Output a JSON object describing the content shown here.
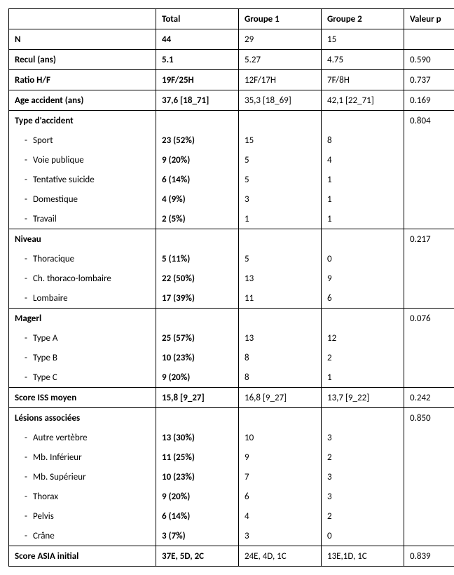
{
  "headers": {
    "c1": "Total",
    "c2": "Groupe 1",
    "c3": "Groupe 2",
    "c4": "Valeur p"
  },
  "rows": {
    "n": {
      "label": "N",
      "total": "44",
      "g1": "29",
      "g2": "15",
      "p": ""
    },
    "recul": {
      "label": "Recul (ans)",
      "total": "5.1",
      "g1": "5.27",
      "g2": "4.75",
      "p": "0.590"
    },
    "ratio": {
      "label": "Ratio H/F",
      "total": "19F/25H",
      "g1": "12F/17H",
      "g2": "7F/8H",
      "p": "0.737"
    },
    "age": {
      "label": "Age accident (ans)",
      "total": "37,6 [18_71]",
      "g1": "35,3 [18_69]",
      "g2": "42,1 [22_71]",
      "p": "0.169"
    },
    "type_hdr": {
      "label": "Type d'accident",
      "p": "0.804"
    },
    "type_sport": {
      "label": "Sport",
      "total": "23 (52%)",
      "g1": "15",
      "g2": "8"
    },
    "type_voie": {
      "label": "Voie publique",
      "total": "9 (20%)",
      "g1": "5",
      "g2": "4"
    },
    "type_suicide": {
      "label": "Tentative suicide",
      "total": "6 (14%)",
      "g1": "5",
      "g2": "1"
    },
    "type_dom": {
      "label": "Domestique",
      "total": "4 (9%)",
      "g1": "3",
      "g2": "1"
    },
    "type_trav": {
      "label": "Travail",
      "total": "2 (5%)",
      "g1": "1",
      "g2": "1"
    },
    "niv_hdr": {
      "label": "Niveau",
      "p": "0.217"
    },
    "niv_thor": {
      "label": "Thoracique",
      "total": "5 (11%)",
      "g1": "5",
      "g2": "0"
    },
    "niv_tl": {
      "label": "Ch. thoraco-lombaire",
      "total": "22 (50%)",
      "g1": "13",
      "g2": "9"
    },
    "niv_lom": {
      "label": "Lombaire",
      "total": "17 (39%)",
      "g1": "11",
      "g2": "6"
    },
    "mag_hdr": {
      "label": "Magerl",
      "p": "0.076"
    },
    "mag_a": {
      "label": "Type A",
      "total": "25 (57%)",
      "g1": "13",
      "g2": "12"
    },
    "mag_b": {
      "label": "Type B",
      "total": "10 (23%)",
      "g1": "8",
      "g2": "2"
    },
    "mag_c": {
      "label": "Type C",
      "total": "9 (20%)",
      "g1": "8",
      "g2": "1"
    },
    "iss": {
      "label": "Score ISS moyen",
      "total": "15,8 [9_27]",
      "g1": "16,8 [9_27]",
      "g2": "13,7 [9_22]",
      "p": "0.242"
    },
    "les_hdr": {
      "label": "Lésions associées",
      "p": "0.850"
    },
    "les_vert": {
      "label": "Autre vertèbre",
      "total": "13 (30%)",
      "g1": "10",
      "g2": "3"
    },
    "les_inf": {
      "label": "Mb. Inférieur",
      "total": "11 (25%)",
      "g1": "9",
      "g2": "2"
    },
    "les_sup": {
      "label": "Mb. Supérieur",
      "total": "10 (23%)",
      "g1": "7",
      "g2": "3"
    },
    "les_tho": {
      "label": "Thorax",
      "total": "9 (20%)",
      "g1": "6",
      "g2": "3"
    },
    "les_pel": {
      "label": "Pelvis",
      "total": "6 (14%)",
      "g1": "4",
      "g2": "2"
    },
    "les_cra": {
      "label": "Crâne",
      "total": "3 (7%)",
      "g1": "3",
      "g2": "0"
    },
    "asia": {
      "label": "Score ASIA initial",
      "total": "37E, 5D, 2C",
      "g1": "24E, 4D, 1C",
      "g2": "13E,1D, 1C",
      "p": "0.839"
    }
  }
}
